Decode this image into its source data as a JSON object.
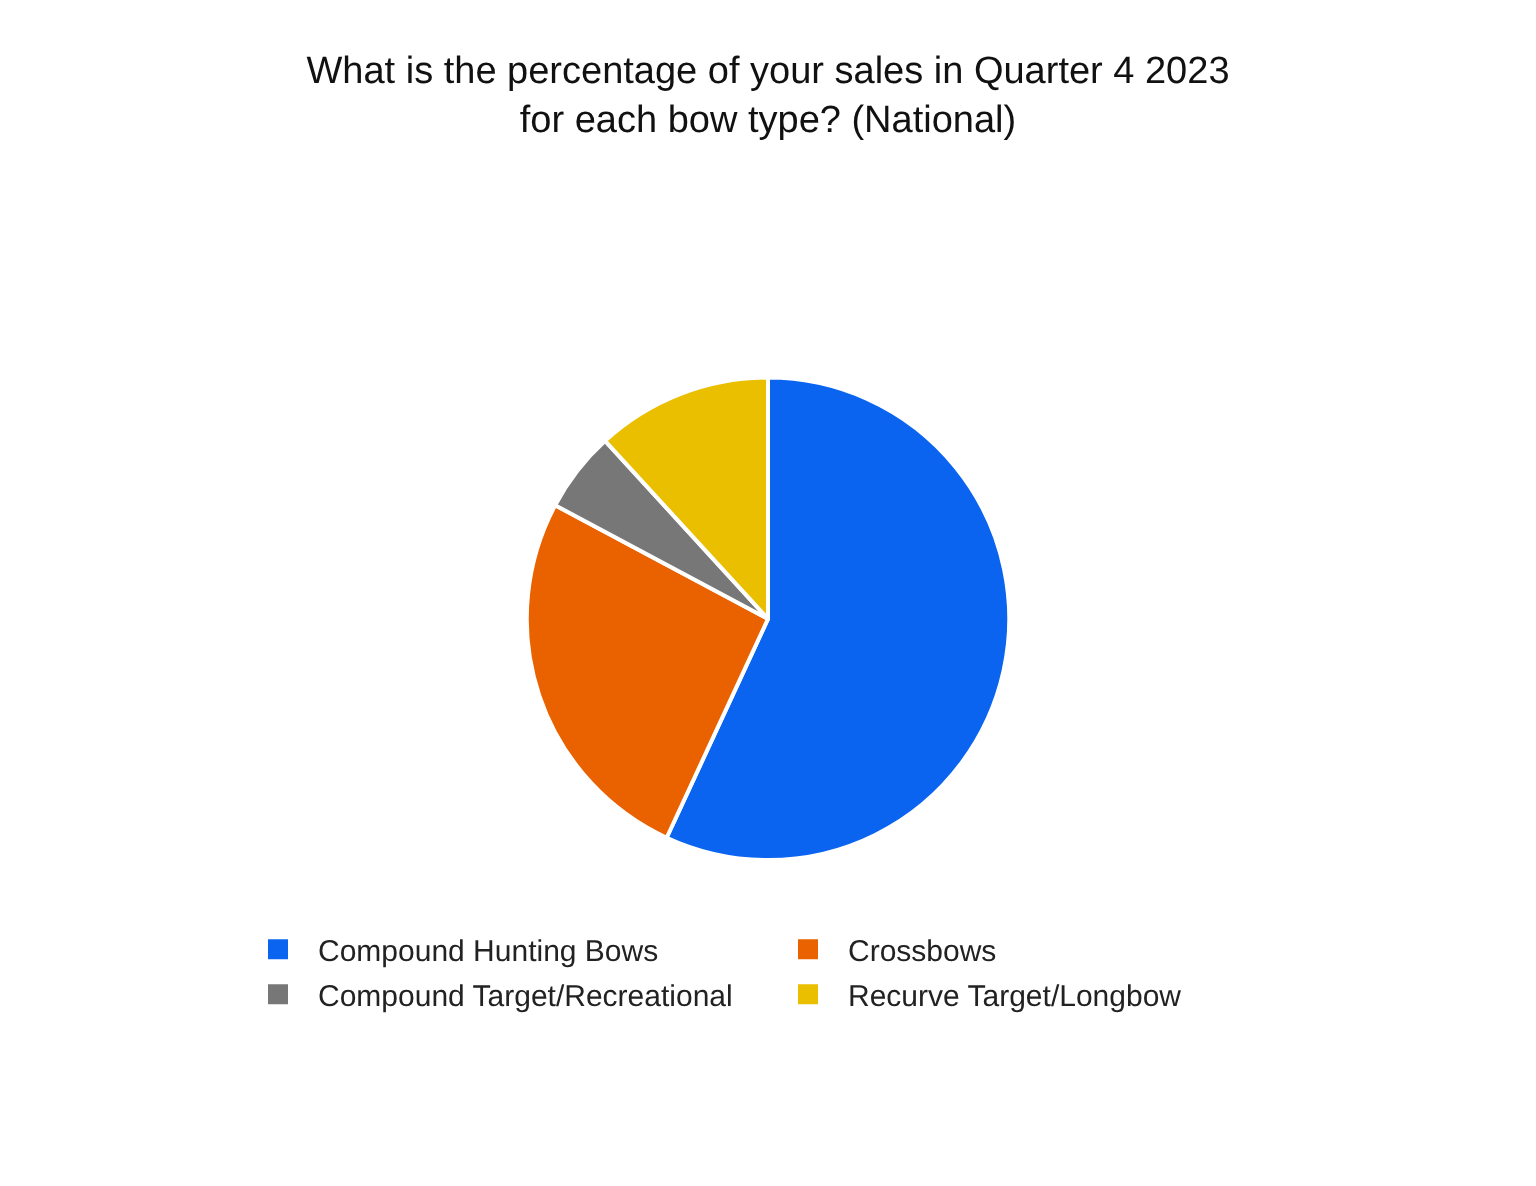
{
  "chart_data": {
    "type": "pie",
    "title": "What is the percentage of your sales in Quarter 4 2023\nfor each bow type? (National)",
    "categories": [
      "Compound Hunting Bows",
      "Crossbows",
      "Compound Target/Recreational",
      "Recurve Target/Longbow"
    ],
    "values": [
      56.9,
      25.9,
      5.4,
      11.8
    ],
    "colors": [
      "#0a64f0",
      "#ea6100",
      "#777777",
      "#eabf00"
    ],
    "legend": "bottom"
  }
}
